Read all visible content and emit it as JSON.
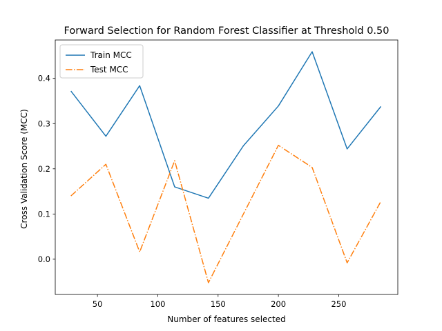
{
  "chart_data": {
    "type": "line",
    "title": "Forward Selection for Random Forest Classifier at Threshold 0.50",
    "xlabel": "Number of features selected",
    "ylabel": "Cross Validation Score (MCC)",
    "xlim": [
      15,
      299
    ],
    "ylim": [
      -0.078,
      0.485
    ],
    "xticks": [
      50,
      100,
      150,
      200,
      250
    ],
    "yticks": [
      0.0,
      0.1,
      0.2,
      0.3,
      0.4
    ],
    "ytick_labels": [
      "0.0",
      "0.1",
      "0.2",
      "0.3",
      "0.4"
    ],
    "grid": false,
    "legend_position": "top-left",
    "x": [
      28,
      57,
      85,
      114,
      142,
      171,
      200,
      228,
      257,
      285
    ],
    "series": [
      {
        "name": "Train MCC",
        "color": "#1f77b4",
        "style": "solid",
        "values": [
          0.372,
          0.272,
          0.384,
          0.16,
          0.135,
          0.251,
          0.339,
          0.459,
          0.244,
          0.338
        ]
      },
      {
        "name": "Test MCC",
        "color": "#ff7f0e",
        "style": "dashdot",
        "values": [
          0.14,
          0.21,
          0.016,
          0.218,
          -0.052,
          0.1,
          0.252,
          0.203,
          -0.008,
          0.128
        ]
      }
    ]
  }
}
